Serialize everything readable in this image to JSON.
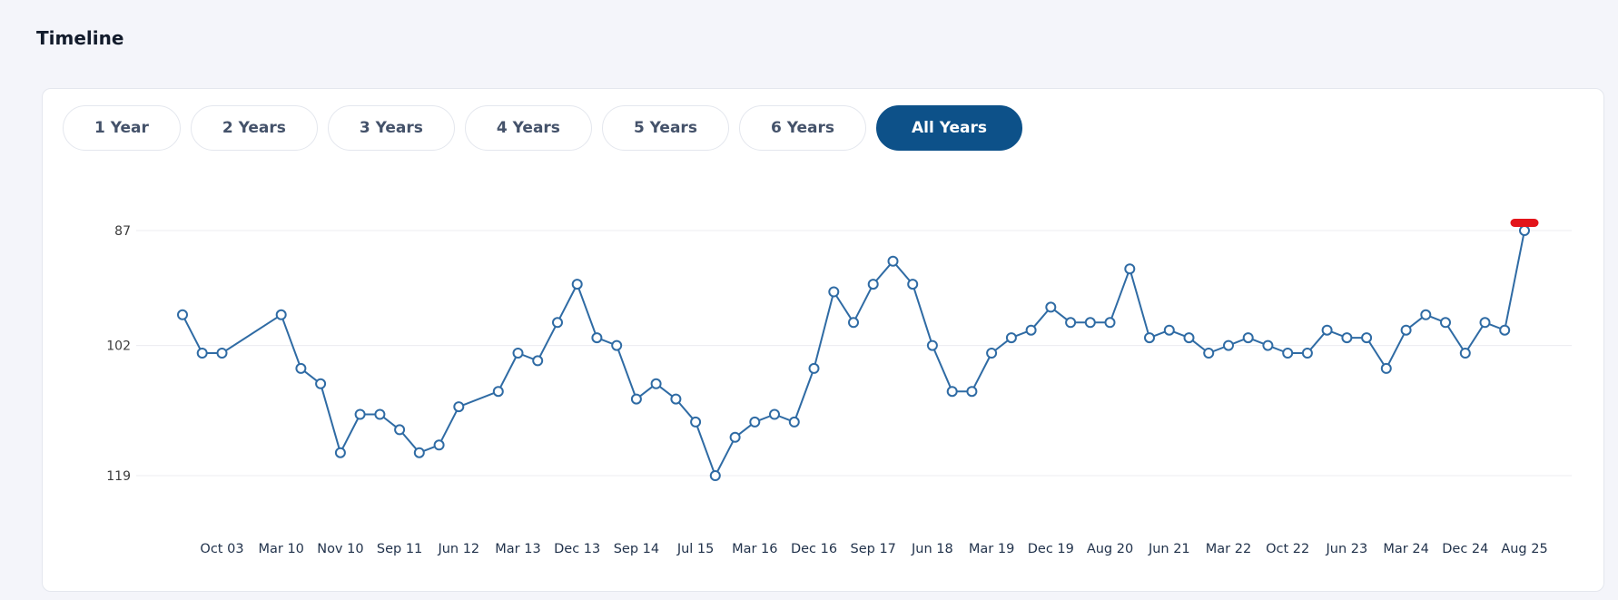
{
  "page": {
    "title": "Timeline"
  },
  "filters": {
    "options": [
      {
        "label": "1 Year",
        "selected": false
      },
      {
        "label": "2 Years",
        "selected": false
      },
      {
        "label": "3 Years",
        "selected": false
      },
      {
        "label": "4 Years",
        "selected": false
      },
      {
        "label": "5 Years",
        "selected": false
      },
      {
        "label": "6 Years",
        "selected": false
      },
      {
        "label": "All Years",
        "selected": true
      }
    ],
    "selected_color": "#0d5189"
  },
  "chart_data": {
    "type": "line",
    "title": "",
    "xlabel": "",
    "ylabel": "",
    "legend": "none",
    "grid": "horizontal-only",
    "y_axis": {
      "ticks": [
        87,
        102,
        119
      ],
      "inverted": true,
      "min": 87,
      "max": 119
    },
    "x_tick_labels": [
      "Oct 03",
      "Mar 10",
      "Nov 10",
      "Sep 11",
      "Jun 12",
      "Mar 13",
      "Dec 13",
      "Sep 14",
      "Jul 15",
      "Mar 16",
      "Dec 16",
      "Sep 17",
      "Jun 18",
      "Mar 19",
      "Dec 19",
      "Aug 20",
      "Jun 21",
      "Mar 22",
      "Oct 22",
      "Jun 23",
      "Mar 24",
      "Dec 24",
      "Aug 25"
    ],
    "first_label_slot": 2,
    "label_every_n_slots": 3,
    "values": [
      98,
      103,
      103,
      null,
      null,
      98,
      105,
      107,
      116,
      111,
      111,
      113,
      116,
      115,
      110,
      null,
      108,
      103,
      104,
      99,
      94,
      101,
      102,
      109,
      107,
      109,
      112,
      119,
      114,
      112,
      111,
      112,
      105,
      95,
      99,
      94,
      91,
      94,
      102,
      108,
      108,
      103,
      101,
      100,
      97,
      99,
      99,
      99,
      92,
      101,
      100,
      101,
      103,
      102,
      101,
      102,
      103,
      103,
      100,
      101,
      101,
      105,
      100,
      98,
      99,
      103,
      99,
      100,
      87
    ],
    "series_color": "#2f6ba4",
    "marker": {
      "fill": "#ffffff",
      "radius": 5
    },
    "gridline_color": "#ececf1",
    "current_value_marker": {
      "slot": 68,
      "value": 87,
      "color": "#e3151b"
    }
  }
}
